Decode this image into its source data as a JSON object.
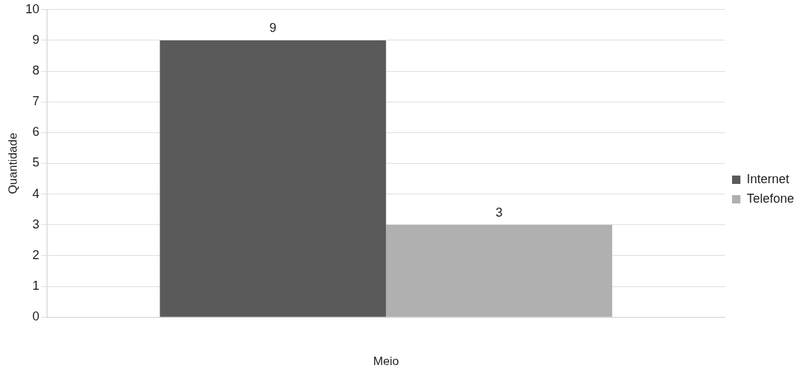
{
  "chart_data": {
    "type": "bar",
    "xlabel": "Meio",
    "ylabel": "Quantidade",
    "categories": [
      null
    ],
    "series": [
      {
        "name": "Internet",
        "color": "#5a5a5a",
        "values": [
          9
        ]
      },
      {
        "name": "Telefone",
        "color": "#b0b0b0",
        "values": [
          3
        ]
      }
    ],
    "ylim": [
      0,
      10
    ],
    "yticks": [
      0,
      1,
      2,
      3,
      4,
      5,
      6,
      7,
      8,
      9,
      10
    ],
    "grid": "y",
    "legend": "right",
    "data_labels": true
  }
}
